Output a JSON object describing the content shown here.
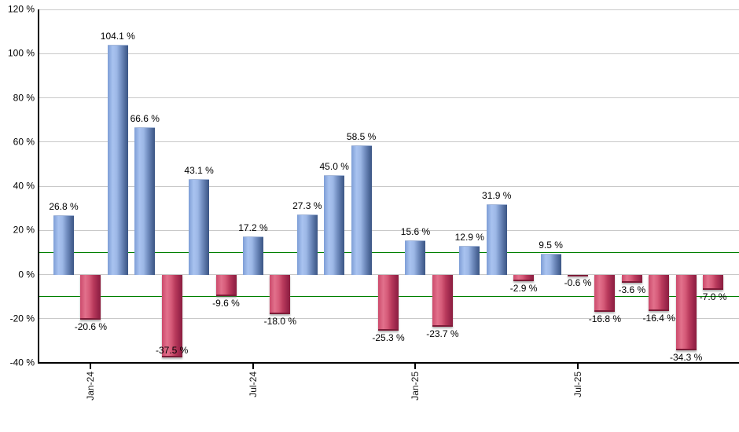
{
  "chart_data": {
    "type": "bar",
    "title": "",
    "xlabel": "",
    "ylabel": "",
    "ylim": [
      -40,
      120
    ],
    "grid": true,
    "legend": false,
    "series": [
      {
        "name": "monthly-returns-percent",
        "values": [
          26.8,
          -20.6,
          104.1,
          66.6,
          -37.5,
          43.1,
          -9.6,
          17.2,
          -18.0,
          27.3,
          45.0,
          58.5,
          -25.3,
          15.6,
          -23.7,
          12.9,
          31.9,
          -2.9,
          9.5,
          -0.6,
          -16.8,
          -3.6,
          -16.4,
          -34.3,
          -7.0
        ]
      }
    ],
    "bar_value_labels": [
      "26.8 %",
      "-20.6 %",
      "104.1 %",
      "66.6 %",
      "-37.5 %",
      "43.1 %",
      "-9.6 %",
      "17.2 %",
      "-18.0 %",
      "27.3 %",
      "45.0 %",
      "58.5 %",
      "-25.3 %",
      "15.6 %",
      "-23.7 %",
      "12.9 %",
      "31.9 %",
      "-2.9 %",
      "9.5 %",
      "-0.6 %",
      "-16.8 %",
      "-3.6 %",
      "-16.4 %",
      "-34.3 %",
      "-7.0 %"
    ],
    "x_axis": {
      "tick_labels": [
        "Jan-24",
        "Jul-24",
        "Jan-25",
        "Jul-25"
      ],
      "tick_bar_indices": [
        1,
        7,
        13,
        19
      ]
    },
    "y_axis": {
      "min": -40,
      "max": 120,
      "step": 20,
      "tick_values": [
        120,
        100,
        80,
        60,
        40,
        20,
        0,
        -20,
        -40
      ],
      "tick_labels": [
        "120 %",
        "100 %",
        "80 %",
        "60 %",
        "40 %",
        "20 %",
        "0 %",
        "-20 %",
        "-40 %"
      ]
    },
    "threshold_lines": {
      "values": [
        10,
        -10
      ],
      "color": "#008000"
    },
    "colors": {
      "positive_bar": "#8fb0e4",
      "negative_bar": "#cc4a6b",
      "gridline": "#c9c9c9",
      "axis": "#000000",
      "label_text": "#000000",
      "background": "#ffffff"
    }
  }
}
